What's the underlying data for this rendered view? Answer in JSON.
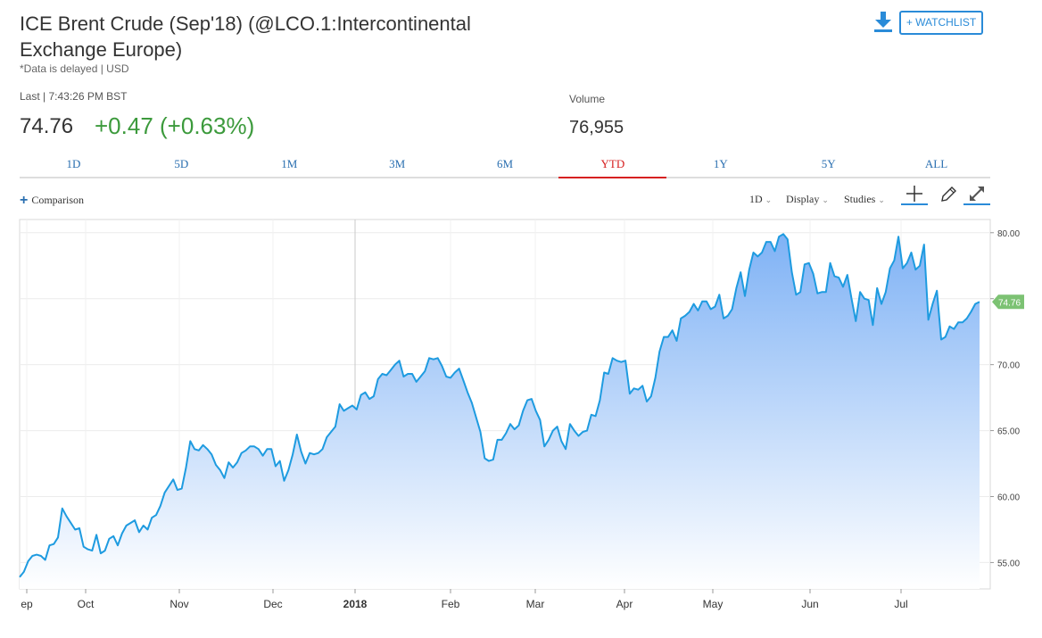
{
  "header": {
    "title": "ICE Brent Crude (Sep'18) (@LCO.1:Intercontinental Exchange Europe)",
    "note": "*Data is delayed | USD",
    "watchlist_label": "+ WATCHLIST"
  },
  "quote": {
    "last_label": "Last | 7:43:26 PM BST",
    "last_price": "74.76",
    "change": "+0.47 (+0.63%)",
    "volume_label": "Volume",
    "volume_value": "76,955"
  },
  "tabs": [
    {
      "label": "1D"
    },
    {
      "label": "5D"
    },
    {
      "label": "1M"
    },
    {
      "label": "3M"
    },
    {
      "label": "6M"
    },
    {
      "label": "YTD",
      "active": true
    },
    {
      "label": "1Y"
    },
    {
      "label": "5Y"
    },
    {
      "label": "ALL"
    }
  ],
  "toolbar": {
    "comparison_label": "Comparison",
    "interval_label": "1D",
    "display_label": "Display",
    "studies_label": "Studies",
    "icons": [
      "crosshair-icon",
      "pencil-icon",
      "expand-icon"
    ]
  },
  "colors": {
    "line": "#1e9be0",
    "fill_top": "#7fb2f5",
    "fill_bottom": "#ffffff",
    "up": "#3c9a3c",
    "accent": "#2a8bd8",
    "active_tab": "#d62020",
    "last_tag": "#7cc273"
  },
  "chart_data": {
    "type": "area",
    "title": "",
    "xlabel": "",
    "ylabel": "",
    "ylim": [
      53,
      81
    ],
    "y_ticks": [
      "55.00",
      "60.00",
      "65.00",
      "70.00",
      "75.00",
      "80.00"
    ],
    "x_tick_labels": [
      "ep",
      "Oct",
      "Nov",
      "Dec",
      "2018",
      "Feb",
      "Mar",
      "Apr",
      "May",
      "Jun",
      "Jul"
    ],
    "last_value_label": "74.76",
    "grid": true,
    "values": [
      53.9,
      54.3,
      55.1,
      55.5,
      55.6,
      55.5,
      55.2,
      56.3,
      56.4,
      56.9,
      59.1,
      58.5,
      58.0,
      57.5,
      57.6,
      56.2,
      56.0,
      55.9,
      57.1,
      55.7,
      55.9,
      56.8,
      57.0,
      56.3,
      57.2,
      57.8,
      58.0,
      58.2,
      57.3,
      57.8,
      57.5,
      58.4,
      58.6,
      59.3,
      60.3,
      60.8,
      61.3,
      60.5,
      60.6,
      62.2,
      64.2,
      63.6,
      63.5,
      63.9,
      63.6,
      63.2,
      62.4,
      62.0,
      61.4,
      62.6,
      62.2,
      62.6,
      63.3,
      63.5,
      63.8,
      63.8,
      63.6,
      63.1,
      63.6,
      63.6,
      62.3,
      62.7,
      61.2,
      62.0,
      63.2,
      64.7,
      63.4,
      62.5,
      63.3,
      63.2,
      63.3,
      63.6,
      64.5,
      64.9,
      65.3,
      67.0,
      66.5,
      66.7,
      66.9,
      66.6,
      67.7,
      67.9,
      67.4,
      67.6,
      68.9,
      69.3,
      69.2,
      69.6,
      70.0,
      70.3,
      69.1,
      69.3,
      69.3,
      68.7,
      69.1,
      69.5,
      70.5,
      70.4,
      70.5,
      69.9,
      69.1,
      69.0,
      69.4,
      69.7,
      68.8,
      67.9,
      67.1,
      66.0,
      64.9,
      62.9,
      62.7,
      62.8,
      64.3,
      64.3,
      64.8,
      65.5,
      65.1,
      65.4,
      66.5,
      67.3,
      67.4,
      66.5,
      65.8,
      63.8,
      64.3,
      65.0,
      65.3,
      64.2,
      63.6,
      65.5,
      65.0,
      64.6,
      64.9,
      65.0,
      66.2,
      66.1,
      67.3,
      69.4,
      69.3,
      70.5,
      70.3,
      70.2,
      70.3,
      67.8,
      68.2,
      68.1,
      68.4,
      67.2,
      67.6,
      69.0,
      71.0,
      72.1,
      72.1,
      72.6,
      71.8,
      73.5,
      73.7,
      74.0,
      74.6,
      74.1,
      74.8,
      74.8,
      74.2,
      74.4,
      75.3,
      73.5,
      73.7,
      74.2,
      75.8,
      77.0,
      75.2,
      77.2,
      78.5,
      78.2,
      78.5,
      79.3,
      79.3,
      78.6,
      79.7,
      79.9,
      79.5,
      77.0,
      75.3,
      75.5,
      77.6,
      77.7,
      76.9,
      75.4,
      75.5,
      75.5,
      77.7,
      76.7,
      76.6,
      75.9,
      76.8,
      75.0,
      73.3,
      75.5,
      75.0,
      74.9,
      73.0,
      75.8,
      74.6,
      75.5,
      77.3,
      77.9,
      79.7,
      77.3,
      77.7,
      78.5,
      77.2,
      77.5,
      79.1,
      73.4,
      74.6,
      75.6,
      71.9,
      72.1,
      72.9,
      72.7,
      73.2,
      73.2,
      73.5,
      74.0,
      74.6,
      74.76
    ]
  }
}
